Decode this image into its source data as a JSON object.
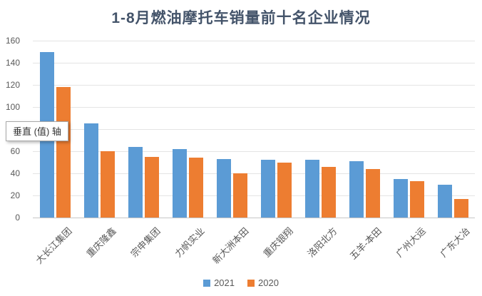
{
  "title": "1-8月燃油摩托车销量前十名企业情况",
  "axis_tooltip": "垂直 (值) 轴",
  "colors": {
    "series_2021": "#5B9BD5",
    "series_2020": "#ED7D31",
    "title_text": "#44546A",
    "tick_text": "#595959",
    "gridline": "#E4E4E4",
    "axis_baseline": "#C6C6C6"
  },
  "legend": {
    "items": [
      {
        "label": "2021",
        "color": "#5B9BD5"
      },
      {
        "label": "2020",
        "color": "#ED7D31"
      }
    ]
  },
  "chart_data": {
    "type": "bar",
    "title": "1-8月燃油摩托车销量前十名企业情况",
    "categories": [
      "大长江集团",
      "重庆隆鑫",
      "宗申集团",
      "力帆实业",
      "新大洲本田",
      "重庆银翔",
      "洛阳北方",
      "五羊-本田",
      "广州大运",
      "广东大冶"
    ],
    "series": [
      {
        "name": "2021",
        "color": "#5B9BD5",
        "values": [
          150,
          85,
          64,
          62,
          53,
          52,
          52,
          51,
          35,
          30
        ]
      },
      {
        "name": "2020",
        "color": "#ED7D31",
        "values": [
          118,
          60,
          55,
          54,
          40,
          50,
          46,
          44,
          33,
          17
        ]
      }
    ],
    "xlabel": "",
    "ylabel": "",
    "ylim": [
      0,
      160
    ],
    "ytick_step": 20,
    "grid": true,
    "legend_position": "bottom"
  }
}
